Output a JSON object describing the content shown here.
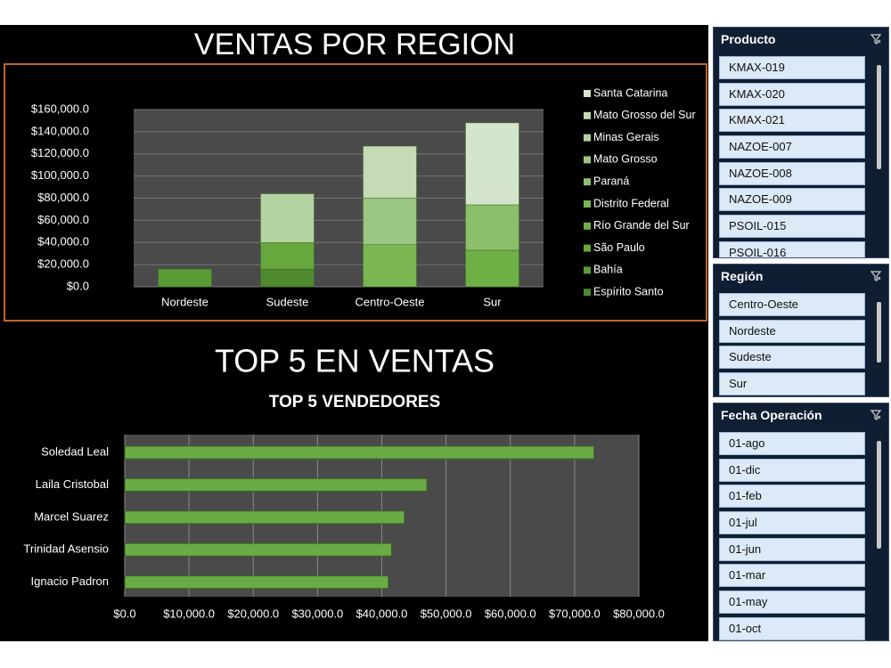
{
  "chart_data": [
    {
      "type": "stacked_bar",
      "title": "VENTAS POR REGION",
      "categories": [
        "Nordeste",
        "Sudeste",
        "Centro-Oeste",
        "Sur"
      ],
      "series": [
        {
          "name": "Espírito Santo",
          "color": "#4f8a2e",
          "values": [
            null,
            16000,
            null,
            null
          ]
        },
        {
          "name": "Bahía",
          "color": "#5a9a35",
          "values": [
            16000,
            null,
            null,
            null
          ]
        },
        {
          "name": "São Paulo",
          "color": "#66a83e",
          "values": [
            null,
            24000,
            null,
            null
          ]
        },
        {
          "name": "Río Grande del Sur",
          "color": "#6fb046",
          "values": [
            null,
            null,
            null,
            33000
          ]
        },
        {
          "name": "Distrito Federal",
          "color": "#7ab752",
          "values": [
            null,
            null,
            38000,
            null
          ]
        },
        {
          "name": "Paraná",
          "color": "#8cbf6a",
          "values": [
            null,
            null,
            null,
            41000
          ]
        },
        {
          "name": "Mato Grosso",
          "color": "#9cc783",
          "values": [
            null,
            null,
            42000,
            null
          ]
        },
        {
          "name": "Minas Gerais",
          "color": "#b4d3a2",
          "values": [
            null,
            44000,
            null,
            null
          ]
        },
        {
          "name": "Mato Grosso del Sur",
          "color": "#c4dbb6",
          "values": [
            null,
            null,
            47000,
            null
          ]
        },
        {
          "name": "Santa Catarina",
          "color": "#d5e5cb",
          "values": [
            null,
            null,
            null,
            74000
          ]
        }
      ],
      "ylim": [
        0,
        160000
      ],
      "yticks": [
        {
          "value": 0,
          "label": "$0.0"
        },
        {
          "value": 20000,
          "label": "$20,000.0"
        },
        {
          "value": 40000,
          "label": "$40,000.0"
        },
        {
          "value": 60000,
          "label": "$60,000.0"
        },
        {
          "value": 80000,
          "label": "$80,000.0"
        },
        {
          "value": 100000,
          "label": "$100,000.0"
        },
        {
          "value": 120000,
          "label": "$120,000.0"
        },
        {
          "value": 140000,
          "label": "$140,000.0"
        },
        {
          "value": 160000,
          "label": "$160,000.0"
        }
      ]
    },
    {
      "type": "hbar",
      "heading": "TOP 5 EN VENTAS",
      "title": "TOP 5 VENDEDORES",
      "categories": [
        "Soledad Leal",
        "Laila Cristobal",
        "Marcel Suarez",
        "Trinidad Asensio",
        "Ignacio Padron"
      ],
      "values": [
        73000,
        47000,
        43500,
        41500,
        41000
      ],
      "color": "#6aab45",
      "xlim": [
        0,
        80000
      ],
      "xticks": [
        {
          "value": 0,
          "label": "$0.0"
        },
        {
          "value": 10000,
          "label": "$10,000.0"
        },
        {
          "value": 20000,
          "label": "$20,000.0"
        },
        {
          "value": 30000,
          "label": "$30,000.0"
        },
        {
          "value": 40000,
          "label": "$40,000.0"
        },
        {
          "value": 50000,
          "label": "$50,000.0"
        },
        {
          "value": 60000,
          "label": "$60,000.0"
        },
        {
          "value": 70000,
          "label": "$70,000.0"
        },
        {
          "value": 80000,
          "label": "$80,000.0"
        }
      ]
    }
  ],
  "slicers": [
    {
      "title": "Producto",
      "items": [
        "KMAX-019",
        "KMAX-020",
        "KMAX-021",
        "NAZOE-007",
        "NAZOE-008",
        "NAZOE-009",
        "PSOIL-015",
        "PSOIL-016"
      ]
    },
    {
      "title": "Región",
      "items": [
        "Centro-Oeste",
        "Nordeste",
        "Sudeste",
        "Sur"
      ]
    },
    {
      "title": "Fecha Operación",
      "items": [
        "01-ago",
        "01-dic",
        "01-feb",
        "01-jul",
        "01-jun",
        "01-mar",
        "01-may",
        "01-oct"
      ]
    }
  ]
}
